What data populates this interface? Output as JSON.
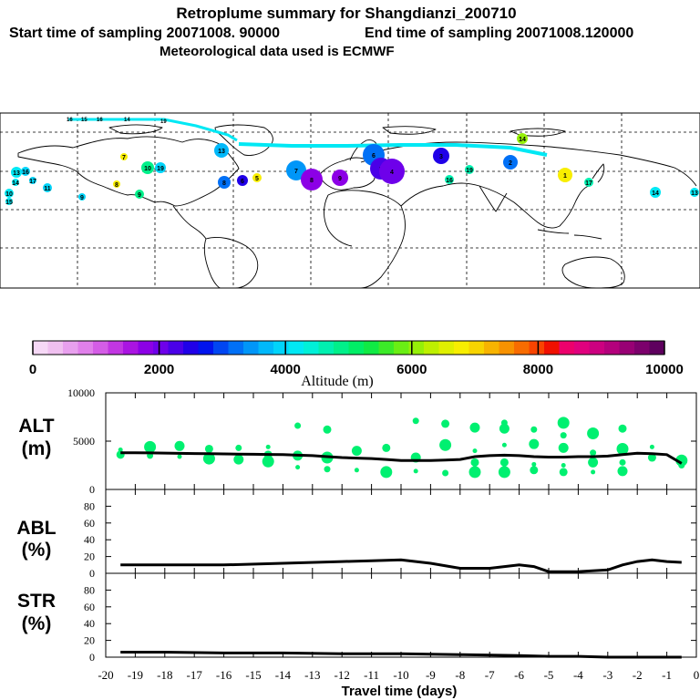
{
  "title": "Retroplume summary for Shangdianzi_200710",
  "sampling_start": "Start time of sampling 20071008. 90000",
  "sampling_end": "End time of sampling 20071008.120000",
  "met_data": "Meteorological data used is ECMWF",
  "colorbar": {
    "label": "Altitude (m)",
    "ticks": [
      "0",
      "2000",
      "4000",
      "6000",
      "8000",
      "10000"
    ],
    "range": [
      0,
      10000
    ],
    "colors": [
      "#f6d8f6",
      "#f0c0f0",
      "#e8a0ee",
      "#e080ea",
      "#d45de6",
      "#c236e2",
      "#aa14e2",
      "#8c00e6",
      "#6e00ea",
      "#4a00e8",
      "#2000e8",
      "#0014ee",
      "#0046f2",
      "#0070f6",
      "#0096f8",
      "#00b8fa",
      "#00d4fa",
      "#00e8f4",
      "#00f0d8",
      "#00f0b0",
      "#00f08a",
      "#00ee66",
      "#10ea44",
      "#3cea28",
      "#6aee14",
      "#96f008",
      "#bef000",
      "#e0f000",
      "#f8ee00",
      "#f8d400",
      "#f8b400",
      "#f89200",
      "#f86c00",
      "#f84400",
      "#f01000",
      "#ec006c",
      "#e0007e",
      "#cc0080",
      "#b4007c",
      "#980074",
      "#7c006c",
      "#5e005e"
    ]
  },
  "map_markers": [
    {
      "label": "10",
      "color": "#00e8f4"
    },
    {
      "label": "15",
      "color": "#00e8f4"
    },
    {
      "label": "14",
      "color": "#00e8f4"
    },
    {
      "label": "13",
      "color": "#00e8f4"
    },
    {
      "label": "16",
      "color": "#00d4fa"
    },
    {
      "label": "17",
      "color": "#00d4fa"
    },
    {
      "label": "11",
      "color": "#00d4fa"
    },
    {
      "label": "9",
      "color": "#00d4fa"
    },
    {
      "label": "19",
      "color": "#00d4fa"
    },
    {
      "label": "10",
      "color": "#00f08a"
    },
    {
      "label": "9",
      "color": "#00f08a"
    },
    {
      "label": "8",
      "color": "#f8ee00"
    },
    {
      "label": "7",
      "color": "#f8ee00"
    },
    {
      "label": "13",
      "color": "#00b8fa"
    },
    {
      "label": "8",
      "color": "#0070f6"
    },
    {
      "label": "6",
      "color": "#2000e8"
    },
    {
      "label": "5",
      "color": "#f8ee00"
    },
    {
      "label": "7",
      "color": "#0096f8"
    },
    {
      "label": "8",
      "color": "#8c00e6"
    },
    {
      "label": "9",
      "color": "#8c00e6"
    },
    {
      "label": "6",
      "color": "#0070f6"
    },
    {
      "label": "5",
      "color": "#4a00e8"
    },
    {
      "label": "4",
      "color": "#6e00ea"
    },
    {
      "label": "3",
      "color": "#2000e8"
    },
    {
      "label": "2",
      "color": "#0070f6"
    },
    {
      "label": "1",
      "color": "#f8ee00"
    },
    {
      "label": "14",
      "color": "#96f008"
    },
    {
      "label": "19",
      "color": "#00f0b0"
    },
    {
      "label": "16",
      "color": "#00f0b0"
    },
    {
      "label": "17",
      "color": "#00f0b0"
    },
    {
      "label": "14",
      "color": "#00e8f4"
    },
    {
      "label": "13",
      "color": "#00e8f4"
    }
  ],
  "chart_data": [
    {
      "type": "line+scatter",
      "panel": "altitude",
      "ylabel": "ALT\n(m)",
      "ylabel_lines": [
        "ALT",
        "(m)"
      ],
      "ylim": [
        0,
        10000
      ],
      "yticks": [
        "10000",
        "5000",
        "0"
      ],
      "xlim": [
        -20,
        0
      ],
      "x": [
        -19.5,
        -19,
        -18.5,
        -18,
        -17.5,
        -17,
        -16.5,
        -16,
        -15.5,
        -15,
        -14.5,
        -14,
        -13.5,
        -13,
        -12.5,
        -12,
        -11.5,
        -11,
        -10.5,
        -10,
        -9.5,
        -9,
        -8.5,
        -8,
        -7.5,
        -7,
        -6.5,
        -6,
        -5.5,
        -5,
        -4.5,
        -4,
        -3.5,
        -3,
        -2.5,
        -2,
        -1.5,
        -1,
        -0.5
      ],
      "mean_altitude": [
        3800,
        3800,
        3780,
        3760,
        3740,
        3720,
        3700,
        3680,
        3660,
        3640,
        3620,
        3600,
        3550,
        3500,
        3400,
        3300,
        3250,
        3200,
        3100,
        3000,
        3000,
        3000,
        3050,
        3100,
        3400,
        3500,
        3550,
        3500,
        3400,
        3350,
        3350,
        3400,
        3400,
        3450,
        3600,
        3750,
        3700,
        3600,
        2700
      ],
      "plume_points": [
        {
          "x": -19.5,
          "y": 4100
        },
        {
          "x": -19.5,
          "y": 3600
        },
        {
          "x": -18.5,
          "y": 4400
        },
        {
          "x": -18.5,
          "y": 3500
        },
        {
          "x": -17.5,
          "y": 4500
        },
        {
          "x": -17.5,
          "y": 3400
        },
        {
          "x": -16.5,
          "y": 4200
        },
        {
          "x": -16.5,
          "y": 3200
        },
        {
          "x": -15.5,
          "y": 4300
        },
        {
          "x": -15.5,
          "y": 3100
        },
        {
          "x": -14.5,
          "y": 4400
        },
        {
          "x": -14.5,
          "y": 3600
        },
        {
          "x": -14.5,
          "y": 2900
        },
        {
          "x": -13.5,
          "y": 6600
        },
        {
          "x": -13.5,
          "y": 3500
        },
        {
          "x": -13.5,
          "y": 2300
        },
        {
          "x": -12.5,
          "y": 6200
        },
        {
          "x": -12.5,
          "y": 3300
        },
        {
          "x": -12.5,
          "y": 2100
        },
        {
          "x": -11.5,
          "y": 4000
        },
        {
          "x": -11.5,
          "y": 2000
        },
        {
          "x": -10.5,
          "y": 4300
        },
        {
          "x": -10.5,
          "y": 1800
        },
        {
          "x": -9.5,
          "y": 7100
        },
        {
          "x": -9.5,
          "y": 3300
        },
        {
          "x": -9.5,
          "y": 1900
        },
        {
          "x": -8.5,
          "y": 6800
        },
        {
          "x": -8.5,
          "y": 4600
        },
        {
          "x": -8.5,
          "y": 1700
        },
        {
          "x": -7.5,
          "y": 6400
        },
        {
          "x": -7.5,
          "y": 4000
        },
        {
          "x": -7.5,
          "y": 2800
        },
        {
          "x": -7.5,
          "y": 1800
        },
        {
          "x": -6.5,
          "y": 6900
        },
        {
          "x": -6.5,
          "y": 6300
        },
        {
          "x": -6.5,
          "y": 4600
        },
        {
          "x": -6.5,
          "y": 2800
        },
        {
          "x": -6.5,
          "y": 1800
        },
        {
          "x": -5.5,
          "y": 6200
        },
        {
          "x": -5.5,
          "y": 4700
        },
        {
          "x": -5.5,
          "y": 2600
        },
        {
          "x": -5.5,
          "y": 2000
        },
        {
          "x": -4.5,
          "y": 6900
        },
        {
          "x": -4.5,
          "y": 5600
        },
        {
          "x": -4.5,
          "y": 4300
        },
        {
          "x": -4.5,
          "y": 2500
        },
        {
          "x": -4.5,
          "y": 1800
        },
        {
          "x": -3.5,
          "y": 5800
        },
        {
          "x": -3.5,
          "y": 3800
        },
        {
          "x": -3.5,
          "y": 2800
        },
        {
          "x": -3.5,
          "y": 1800
        },
        {
          "x": -2.5,
          "y": 6300
        },
        {
          "x": -2.5,
          "y": 4200
        },
        {
          "x": -2.5,
          "y": 2800
        },
        {
          "x": -2.5,
          "y": 1900
        },
        {
          "x": -1.5,
          "y": 4400
        },
        {
          "x": -1.5,
          "y": 3300
        },
        {
          "x": -0.5,
          "y": 3000
        },
        {
          "x": -0.5,
          "y": 2500
        }
      ]
    },
    {
      "type": "line",
      "panel": "abl",
      "ylabel": "ABL\n(%)",
      "ylabel_lines": [
        "ABL",
        "(%)"
      ],
      "ylim": [
        0,
        100
      ],
      "yticks": [
        "80",
        "60",
        "40",
        "20",
        "0"
      ],
      "xlim": [
        -20,
        0
      ],
      "x": [
        -19.5,
        -18,
        -16,
        -14,
        -12,
        -11,
        -10,
        -9,
        -8,
        -7,
        -6,
        -5.5,
        -5,
        -4.5,
        -4,
        -3,
        -2.5,
        -2,
        -1.5,
        -1,
        -0.5
      ],
      "values": [
        10,
        10,
        10,
        12,
        14,
        15,
        16,
        12,
        6,
        6,
        10,
        8,
        2,
        2,
        2,
        4,
        10,
        14,
        16,
        14,
        13
      ]
    },
    {
      "type": "line",
      "panel": "str",
      "ylabel": "STR\n(%)",
      "ylabel_lines": [
        "STR",
        "(%)"
      ],
      "ylim": [
        0,
        100
      ],
      "yticks": [
        "80",
        "60",
        "40",
        "20",
        "0"
      ],
      "xlim": [
        -20,
        0
      ],
      "x": [
        -19.5,
        -18,
        -16,
        -14,
        -12,
        -10,
        -8,
        -6,
        -5,
        -4,
        -3,
        -2,
        -1,
        -0.5
      ],
      "values": [
        6,
        6,
        5,
        5,
        4,
        4,
        3,
        2,
        1,
        1,
        0,
        0,
        0,
        0
      ]
    }
  ],
  "xaxis": {
    "ticks": [
      "-20",
      "-19",
      "-18",
      "-17",
      "-16",
      "-15",
      "-14",
      "-13",
      "-12",
      "-11",
      "-10",
      "-9",
      "-8",
      "-7",
      "-6",
      "-5",
      "-4",
      "-3",
      "-2",
      "-1",
      "0"
    ],
    "label": "Travel time (days)"
  }
}
